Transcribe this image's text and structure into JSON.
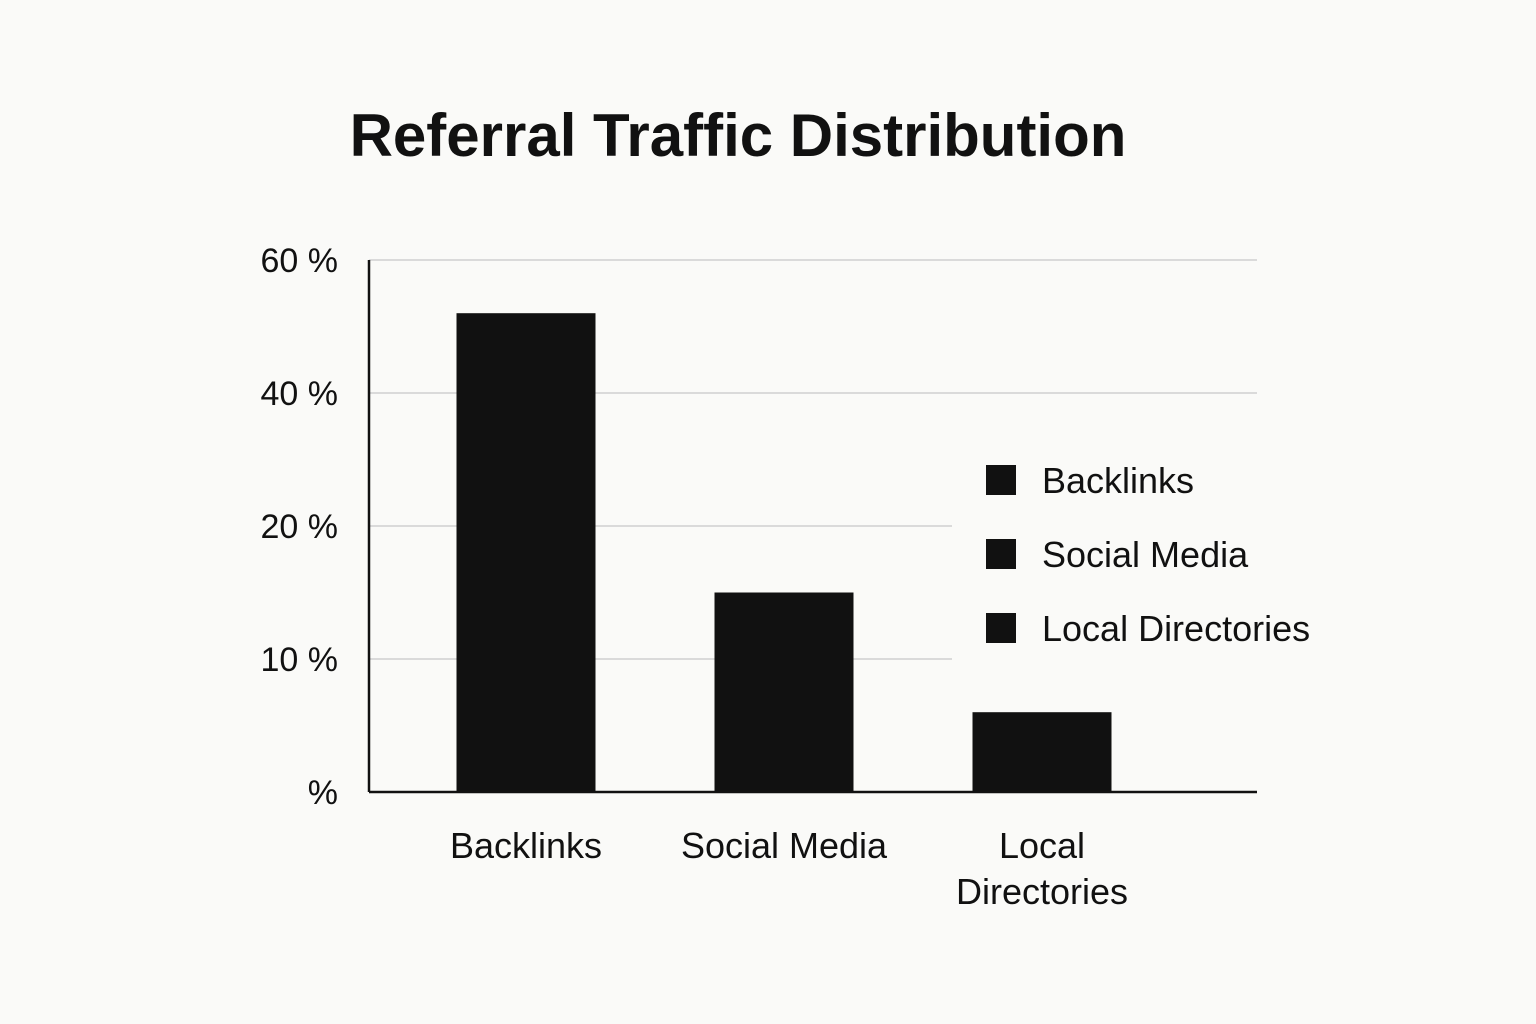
{
  "chart_data": {
    "type": "bar",
    "title": "Referral Traffic Distribution",
    "xlabel": "",
    "ylabel": "",
    "categories": [
      "Backlinks",
      "Social Media",
      "Local Directories"
    ],
    "category_labels": [
      [
        "Backlinks"
      ],
      [
        "Social Media"
      ],
      [
        "Local",
        "Directories"
      ]
    ],
    "values": [
      52,
      15,
      6
    ],
    "y_ticks": [
      {
        "value": 0,
        "label": "%"
      },
      {
        "value": 10,
        "label": "10 %"
      },
      {
        "value": 20,
        "label": "20 %"
      },
      {
        "value": 40,
        "label": "40 %"
      },
      {
        "value": 60,
        "label": "60 %"
      }
    ],
    "ylim": [
      0,
      60
    ],
    "grid": true,
    "legend": {
      "placement": "right",
      "entries": [
        "Backlinks",
        "Social Media",
        "Local Directories"
      ]
    },
    "colors": {
      "bar": "#111111",
      "grid": "#cfcfcf",
      "axis": "#111111",
      "background": "#fafaf8"
    }
  }
}
